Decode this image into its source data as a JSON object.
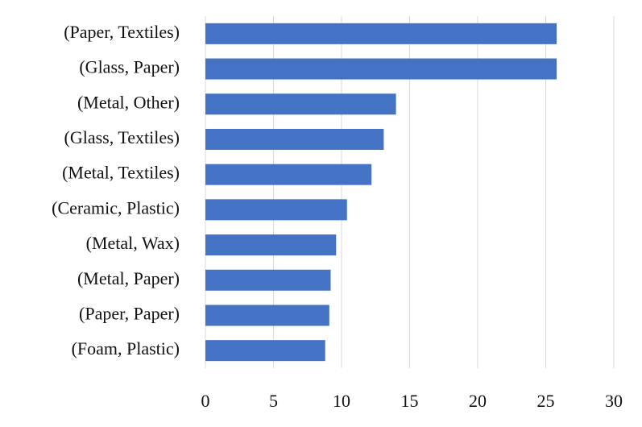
{
  "chart_data": {
    "type": "barh",
    "categories": [
      "(Paper, Textiles)",
      "(Glass, Paper)",
      "(Metal, Other)",
      "(Glass, Textiles)",
      "(Metal, Textiles)",
      "(Ceramic, Plastic)",
      "(Metal, Wax)",
      "(Metal, Paper)",
      "(Paper, Paper)",
      "(Foam, Plastic)"
    ],
    "values": [
      25.8,
      25.8,
      14.0,
      13.1,
      12.2,
      10.4,
      9.6,
      9.2,
      9.1,
      8.8
    ],
    "color": "#4472c4",
    "xlim": [
      0,
      30
    ],
    "xticks": [
      0,
      5,
      10,
      15,
      20,
      25,
      30
    ],
    "grid": true
  }
}
